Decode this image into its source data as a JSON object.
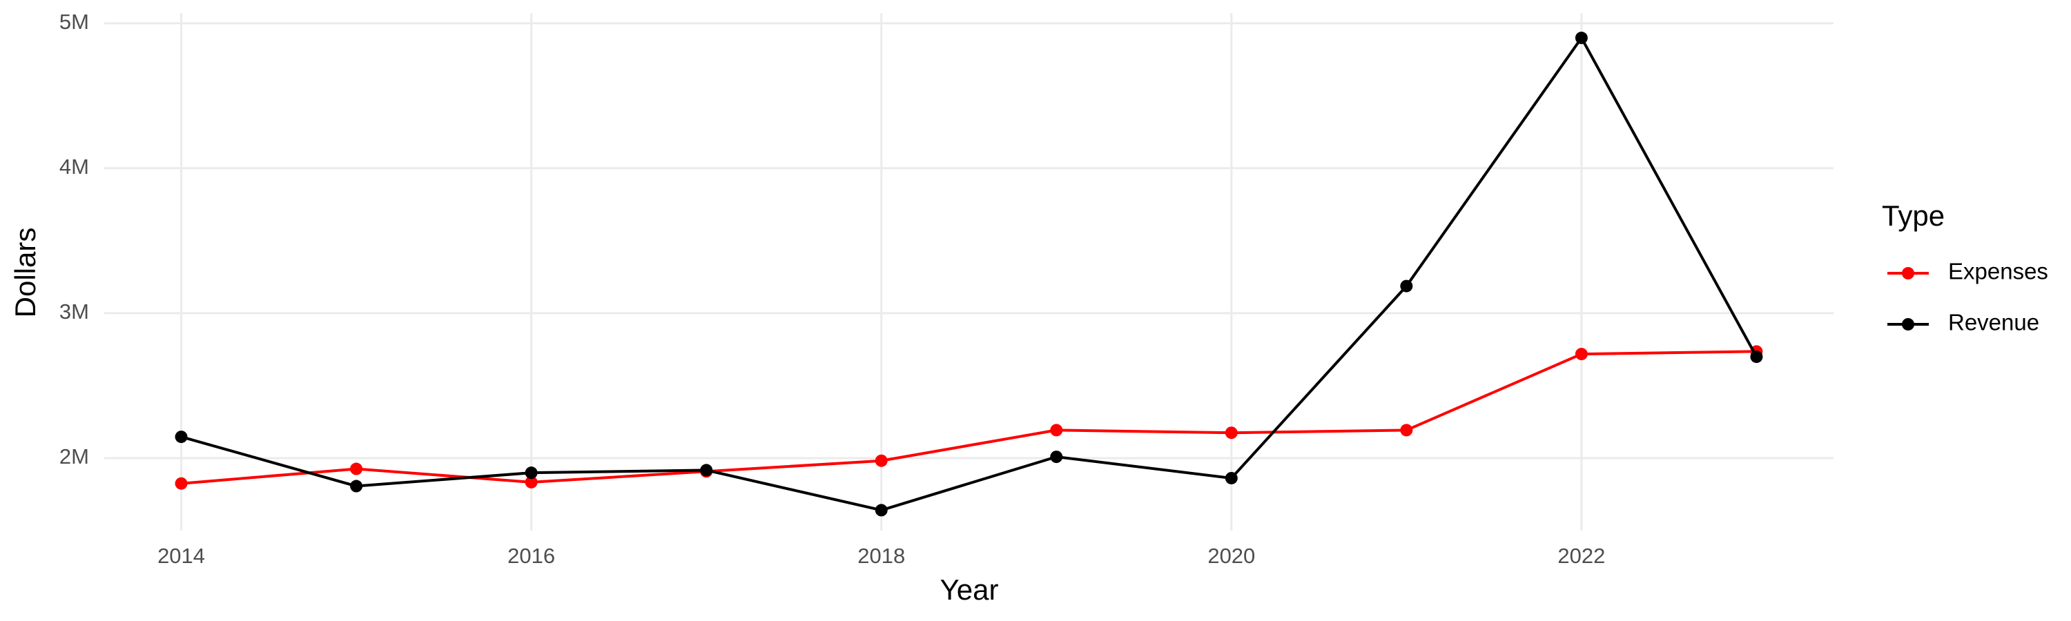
{
  "chart_data": {
    "type": "line",
    "x_label": "Year",
    "y_label": "Dollars",
    "x": [
      2014,
      2015,
      2016,
      2017,
      2018,
      2019,
      2020,
      2021,
      2022,
      2023
    ],
    "series": [
      {
        "name": "Expenses",
        "color": "#ff0000",
        "values": [
          1825000,
          1926000,
          1834000,
          1908000,
          1982000,
          2193000,
          2175000,
          2193000,
          2718000,
          2736000
        ]
      },
      {
        "name": "Revenue",
        "color": "#000000",
        "values": [
          2147000,
          1807000,
          1899000,
          1917000,
          1641000,
          2009000,
          1862000,
          3187000,
          4899000,
          2699000
        ]
      }
    ],
    "xlim": [
      2013.56,
      2023.44
    ],
    "xticks": [
      2014,
      2016,
      2018,
      2020,
      2022
    ],
    "ylim": [
      1500000,
      5070000
    ],
    "yticks": [
      {
        "value": 2000000,
        "label": "2M"
      },
      {
        "value": 3000000,
        "label": "3M"
      },
      {
        "value": 4000000,
        "label": "4M"
      },
      {
        "value": 5000000,
        "label": "5M"
      }
    ],
    "grid": true,
    "legend_title": "Type",
    "legend_position": "right"
  }
}
